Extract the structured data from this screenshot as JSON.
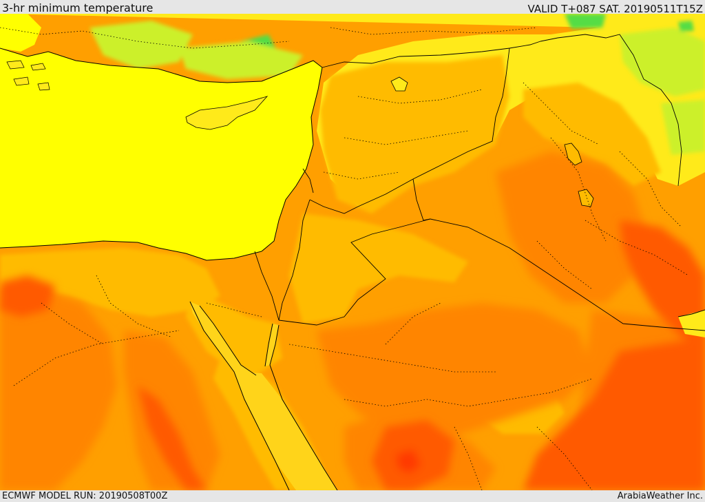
{
  "header": {
    "title": "3-hr minimum temperature",
    "valid": "VALID T+087 SAT. 20190511T15Z"
  },
  "footer": {
    "model_run": "ECMWF MODEL RUN: 20190508T00Z",
    "credit": "ArabiaWeather Inc."
  },
  "colors": {
    "background": "#e6e6e6",
    "sea": "#ffff00",
    "yellow_light": "#ffea1a",
    "orange_light": "#ffbb00",
    "orange": "#ff9f00",
    "orange_dark": "#ff8500",
    "red_orange": "#ff5a00",
    "red": "#ff3a00",
    "green_light": "#ccf02a",
    "green": "#55dd44",
    "border_line": "#000000"
  }
}
